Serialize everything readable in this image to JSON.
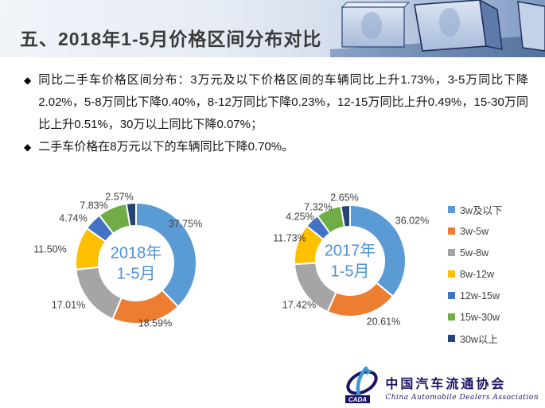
{
  "header": {
    "title": "五、2018年1-5月价格区间分布对比"
  },
  "bullets": [
    {
      "marker": "◆",
      "text": "同比二手车价格区间分布：3万元及以下价格区间的车辆同比上升1.73%，3-5万同比下降2.02%，5-8万同比下降0.40%，8-12万同比下降0.23%，12-15万同比上升0.49%，15-30万同比上升0.51%，30万以上同比下降0.07%；"
    },
    {
      "marker": "◆",
      "text": "二手车价格在8万元以下的车辆同比下降0.70%。"
    }
  ],
  "chart_data": [
    {
      "type": "pie",
      "subtype": "donut",
      "title": "2018年1-5月",
      "center_label": [
        "2018年",
        "1-5月"
      ],
      "categories": [
        "3w及以下",
        "3w-5w",
        "5w-8w",
        "8w-12w",
        "12w-15w",
        "15w-30w",
        "30w以上"
      ],
      "values": [
        37.75,
        18.59,
        17.01,
        11.5,
        4.74,
        7.83,
        2.57
      ],
      "labels": [
        "37.75%",
        "18.59%",
        "17.01%",
        "11.50%",
        "4.74%",
        "7.83%",
        "2.57%"
      ],
      "colors": [
        "#5B9BD5",
        "#ED7D31",
        "#A5A5A5",
        "#FFC000",
        "#4472C4",
        "#70AD47",
        "#264478"
      ],
      "center_color": "#4E91D3",
      "label_color": "#3F3F3F",
      "legend_position": "none",
      "start_angle": 0,
      "direction": "clockwise"
    },
    {
      "type": "pie",
      "subtype": "donut",
      "title": "2017年1-5月",
      "center_label": [
        "2017年",
        "1-5月"
      ],
      "categories": [
        "3w及以下",
        "3w-5w",
        "5w-8w",
        "8w-12w",
        "12w-15w",
        "15w-30w",
        "30w以上"
      ],
      "values": [
        36.02,
        20.61,
        17.42,
        11.73,
        4.25,
        7.32,
        2.65
      ],
      "labels": [
        "36.02%",
        "20.61%",
        "17.42%",
        "11.73%",
        "4.25%",
        "7.32%",
        "2.65%"
      ],
      "colors": [
        "#5B9BD5",
        "#ED7D31",
        "#A5A5A5",
        "#FFC000",
        "#4472C4",
        "#70AD47",
        "#264478"
      ],
      "center_color": "#4E91D3",
      "label_color": "#3F3F3F",
      "legend_position": "right",
      "start_angle": 0,
      "direction": "clockwise"
    }
  ],
  "logo": {
    "acronym": "CADA",
    "name_cn": "中国汽车流通协会",
    "name_en": "China Automobile Dealers Association",
    "navy": "#1b1464",
    "blue": "#3f9ad1"
  }
}
